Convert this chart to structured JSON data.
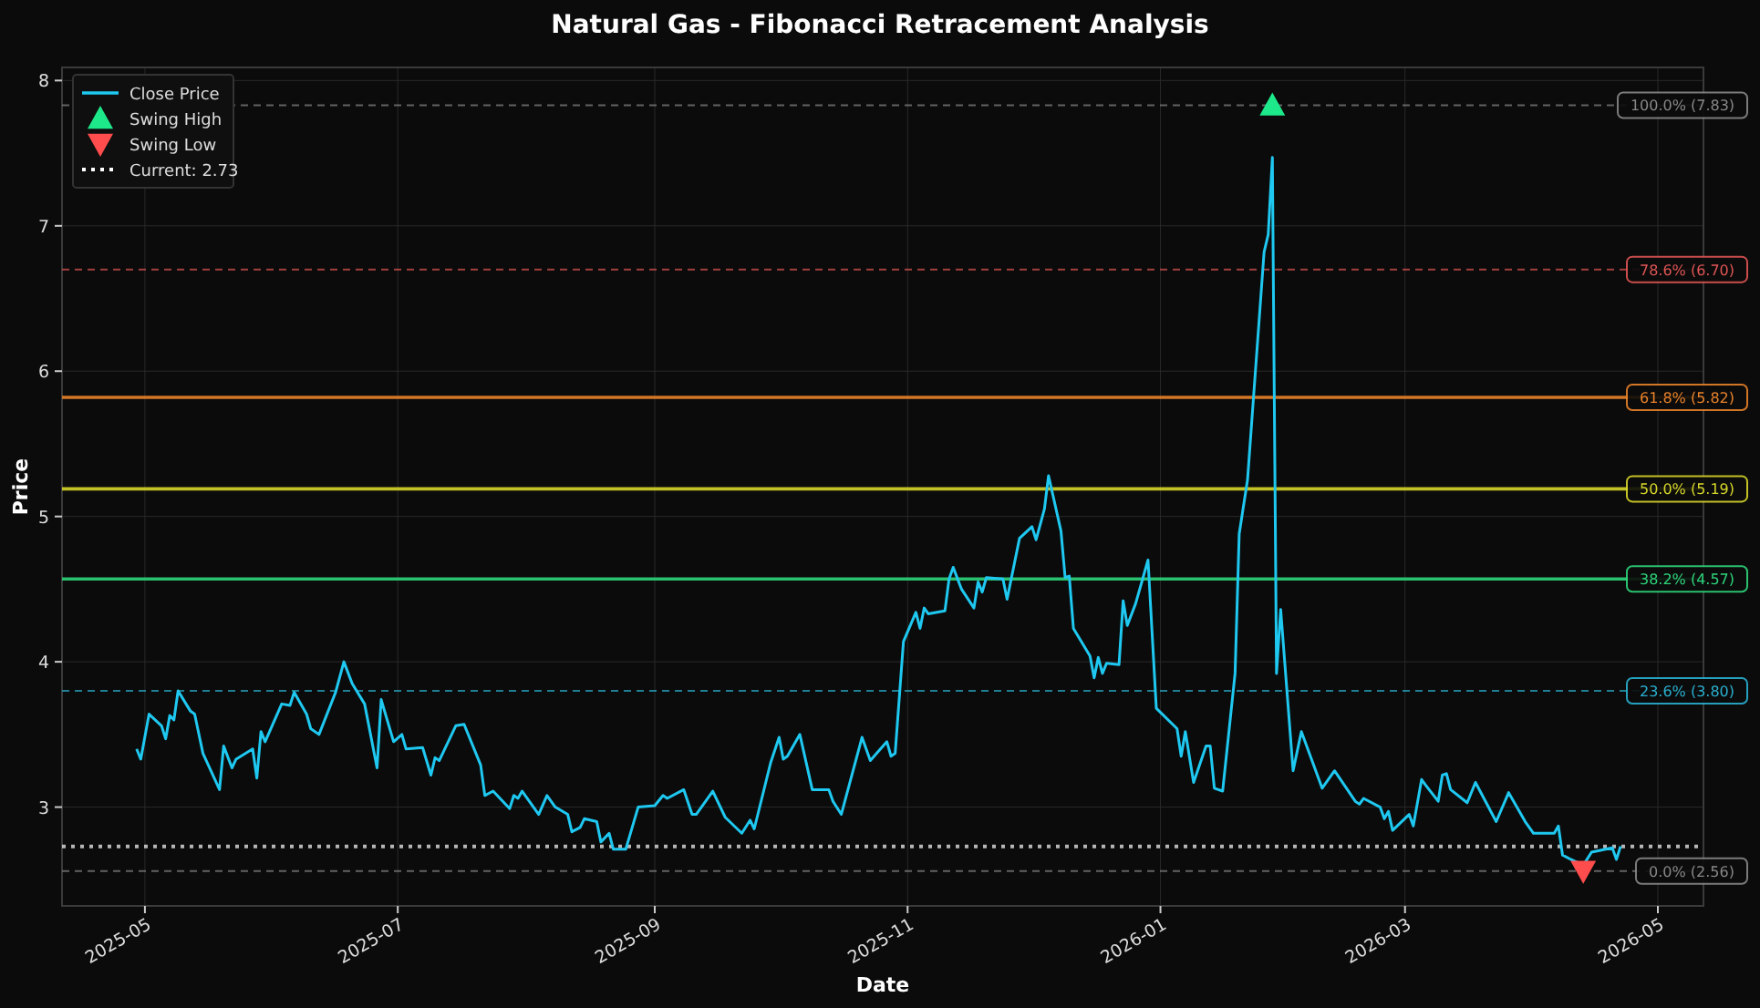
{
  "chart_data": {
    "type": "line",
    "title": "Natural Gas - Fibonacci Retracement Analysis",
    "xlabel": "Date",
    "ylabel": "Price",
    "xlim": [
      "2025-04-11",
      "2026-05-12"
    ],
    "xticks": [
      "2025-05",
      "2025-07",
      "2025-09",
      "2025-11",
      "2026-01",
      "2026-03",
      "2026-05"
    ],
    "ylim": [
      2.32,
      8.09
    ],
    "yticks": [
      3,
      4,
      5,
      6,
      7,
      8
    ],
    "grid": true,
    "legend": "top left",
    "series": [
      {
        "name": "Close Price",
        "color": "#1fc8f0",
        "marker": "none",
        "x": [
          "2025-04-29",
          "2025-04-30",
          "2025-05-02",
          "2025-05-05",
          "2025-05-06",
          "2025-05-07",
          "2025-05-08",
          "2025-05-09",
          "2025-05-12",
          "2025-05-13",
          "2025-05-15",
          "2025-05-19",
          "2025-05-20",
          "2025-05-22",
          "2025-05-23",
          "2025-05-27",
          "2025-05-28",
          "2025-05-29",
          "2025-05-30",
          "2025-06-03",
          "2025-06-05",
          "2025-06-06",
          "2025-06-09",
          "2025-06-10",
          "2025-06-12",
          "2025-06-16",
          "2025-06-18",
          "2025-06-20",
          "2025-06-23",
          "2025-06-26",
          "2025-06-27",
          "2025-06-30",
          "2025-07-02",
          "2025-07-03",
          "2025-07-07",
          "2025-07-09",
          "2025-07-10",
          "2025-07-11",
          "2025-07-15",
          "2025-07-17",
          "2025-07-21",
          "2025-07-22",
          "2025-07-24",
          "2025-07-28",
          "2025-07-29",
          "2025-07-30",
          "2025-07-31",
          "2025-08-04",
          "2025-08-06",
          "2025-08-08",
          "2025-08-11",
          "2025-08-12",
          "2025-08-14",
          "2025-08-15",
          "2025-08-18",
          "2025-08-19",
          "2025-08-21",
          "2025-08-22",
          "2025-08-25",
          "2025-08-28",
          "2025-09-01",
          "2025-09-03",
          "2025-09-04",
          "2025-09-08",
          "2025-09-10",
          "2025-09-11",
          "2025-09-15",
          "2025-09-18",
          "2025-09-22",
          "2025-09-24",
          "2025-09-25",
          "2025-09-29",
          "2025-10-01",
          "2025-10-02",
          "2025-10-03",
          "2025-10-06",
          "2025-10-09",
          "2025-10-13",
          "2025-10-14",
          "2025-10-16",
          "2025-10-21",
          "2025-10-23",
          "2025-10-27",
          "2025-10-28",
          "2025-10-29",
          "2025-10-31",
          "2025-11-03",
          "2025-11-04",
          "2025-11-05",
          "2025-11-06",
          "2025-11-10",
          "2025-11-11",
          "2025-11-12",
          "2025-11-14",
          "2025-11-17",
          "2025-11-18",
          "2025-11-19",
          "2025-11-20",
          "2025-11-24",
          "2025-11-25",
          "2025-11-28",
          "2025-12-01",
          "2025-12-02",
          "2025-12-04",
          "2025-12-05",
          "2025-12-08",
          "2025-12-09",
          "2025-12-10",
          "2025-12-11",
          "2025-12-15",
          "2025-12-16",
          "2025-12-17",
          "2025-12-18",
          "2025-12-19",
          "2025-12-22",
          "2025-12-23",
          "2025-12-24",
          "2025-12-26",
          "2025-12-29",
          "2025-12-31",
          "2026-01-05",
          "2026-01-06",
          "2026-01-07",
          "2026-01-09",
          "2026-01-12",
          "2026-01-13",
          "2026-01-14",
          "2026-01-16",
          "2026-01-19",
          "2026-01-20",
          "2026-01-22",
          "2026-01-26",
          "2026-01-27",
          "2026-01-28",
          "2026-01-29",
          "2026-01-30",
          "2026-02-02",
          "2026-02-04",
          "2026-02-09",
          "2026-02-12",
          "2026-02-17",
          "2026-02-18",
          "2026-02-19",
          "2026-02-23",
          "2026-02-24",
          "2026-02-25",
          "2026-02-26",
          "2026-03-02",
          "2026-03-03",
          "2026-03-05",
          "2026-03-06",
          "2026-03-09",
          "2026-03-10",
          "2026-03-11",
          "2026-03-12",
          "2026-03-16",
          "2026-03-18",
          "2026-03-23",
          "2026-03-26",
          "2026-03-30",
          "2026-04-01",
          "2026-04-06",
          "2026-04-07",
          "2026-04-08",
          "2026-04-10",
          "2026-04-13",
          "2026-04-15",
          "2026-04-20",
          "2026-04-21",
          "2026-04-22"
        ],
        "values": [
          3.4,
          3.33,
          3.64,
          3.56,
          3.47,
          3.63,
          3.6,
          3.8,
          3.66,
          3.64,
          3.37,
          3.12,
          3.42,
          3.27,
          3.33,
          3.4,
          3.2,
          3.52,
          3.45,
          3.71,
          3.7,
          3.79,
          3.64,
          3.54,
          3.5,
          3.79,
          4.0,
          3.85,
          3.71,
          3.27,
          3.74,
          3.45,
          3.5,
          3.4,
          3.41,
          3.22,
          3.34,
          3.32,
          3.56,
          3.57,
          3.29,
          3.08,
          3.11,
          2.99,
          3.08,
          3.06,
          3.11,
          2.95,
          3.08,
          3.0,
          2.95,
          2.83,
          2.86,
          2.92,
          2.9,
          2.76,
          2.82,
          2.71,
          2.71,
          3.0,
          3.01,
          3.08,
          3.06,
          3.12,
          2.95,
          2.95,
          3.11,
          2.93,
          2.82,
          2.91,
          2.85,
          3.31,
          3.48,
          3.33,
          3.35,
          3.5,
          3.12,
          3.12,
          3.04,
          2.95,
          3.48,
          3.32,
          3.45,
          3.35,
          3.37,
          4.14,
          4.34,
          4.23,
          4.37,
          4.33,
          4.35,
          4.57,
          4.65,
          4.5,
          4.37,
          4.55,
          4.48,
          4.58,
          4.57,
          4.43,
          4.85,
          4.93,
          4.84,
          5.05,
          5.28,
          4.9,
          4.58,
          4.59,
          4.23,
          4.04,
          3.89,
          4.03,
          3.92,
          3.99,
          3.98,
          4.42,
          4.25,
          4.4,
          4.7,
          3.68,
          3.54,
          3.35,
          3.52,
          3.17,
          3.42,
          3.42,
          3.13,
          3.11,
          3.92,
          4.88,
          5.25,
          6.82,
          6.94,
          7.47,
          3.92,
          4.36,
          3.25,
          3.52,
          3.13,
          3.25,
          3.04,
          3.02,
          3.06,
          3.0,
          2.92,
          2.97,
          2.84,
          2.95,
          2.87,
          3.19,
          3.15,
          3.04,
          3.22,
          3.23,
          3.12,
          3.03,
          3.17,
          2.9,
          3.1,
          2.9,
          2.82,
          2.82,
          2.87,
          2.67,
          2.64,
          2.6,
          2.69,
          2.72,
          2.64,
          2.73
        ]
      },
      {
        "name": "Swing High",
        "type": "scatter",
        "color": "#1de98b",
        "marker": "triangle",
        "x": [
          "2026-01-28"
        ],
        "values": [
          7.83
        ]
      },
      {
        "name": "Swing Low",
        "type": "scatter",
        "color": "#ff4d4d",
        "marker": "triangle-down",
        "x": [
          "2026-04-13"
        ],
        "values": [
          2.56
        ]
      }
    ],
    "ref_lines": [
      {
        "axis": "y",
        "value": 7.83,
        "label": "100.0% (7.83)",
        "color": "#888888",
        "line_style": "dashed"
      },
      {
        "axis": "y",
        "value": 6.7,
        "label": "78.6% (6.70)",
        "color": "#e05555",
        "line_style": "dashed"
      },
      {
        "axis": "y",
        "value": 5.82,
        "label": "61.8% (5.82)",
        "color": "#e8822a",
        "line_style": "solid"
      },
      {
        "axis": "y",
        "value": 5.19,
        "label": "50.0% (5.19)",
        "color": "#d6d62a",
        "line_style": "solid"
      },
      {
        "axis": "y",
        "value": 4.57,
        "label": "38.2% (4.57)",
        "color": "#2ed47a",
        "line_style": "solid"
      },
      {
        "axis": "y",
        "value": 3.8,
        "label": "23.6% (3.80)",
        "color": "#2ab0d0",
        "line_style": "dashed"
      },
      {
        "axis": "y",
        "value": 2.56,
        "label": "0.0% (2.56)",
        "color": "#888888",
        "line_style": "dashed"
      },
      {
        "axis": "y",
        "value": 2.73,
        "label": "Current: 2.73",
        "color": "#ffffff",
        "line_style": "dotted"
      }
    ]
  }
}
